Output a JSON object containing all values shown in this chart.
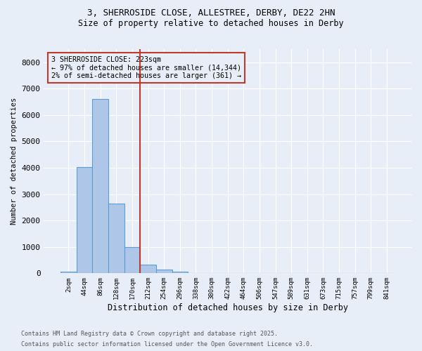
{
  "title_line1": "3, SHERROSIDE CLOSE, ALLESTREE, DERBY, DE22 2HN",
  "title_line2": "Size of property relative to detached houses in Derby",
  "xlabel": "Distribution of detached houses by size in Derby",
  "ylabel": "Number of detached properties",
  "footnote1": "Contains HM Land Registry data © Crown copyright and database right 2025.",
  "footnote2": "Contains public sector information licensed under the Open Government Licence v3.0.",
  "bin_labels": [
    "2sqm",
    "44sqm",
    "86sqm",
    "128sqm",
    "170sqm",
    "212sqm",
    "254sqm",
    "296sqm",
    "338sqm",
    "380sqm",
    "422sqm",
    "464sqm",
    "506sqm",
    "547sqm",
    "589sqm",
    "631sqm",
    "673sqm",
    "715sqm",
    "757sqm",
    "799sqm",
    "841sqm"
  ],
  "bar_values": [
    50,
    4020,
    6620,
    2640,
    990,
    330,
    130,
    55,
    20,
    0,
    0,
    0,
    0,
    0,
    0,
    0,
    0,
    0,
    0,
    0,
    0
  ],
  "bar_color": "#aec6e8",
  "bar_edge_color": "#5a9fd4",
  "ylim": [
    0,
    8500
  ],
  "yticks": [
    0,
    1000,
    2000,
    3000,
    4000,
    5000,
    6000,
    7000,
    8000
  ],
  "vline_x_index": 4.5,
  "vline_color": "#c0392b",
  "annotation_box_text": "3 SHERROSIDE CLOSE: 223sqm\n← 97% of detached houses are smaller (14,344)\n2% of semi-detached houses are larger (361) →",
  "background_color": "#e8eef7",
  "grid_color": "#ffffff"
}
